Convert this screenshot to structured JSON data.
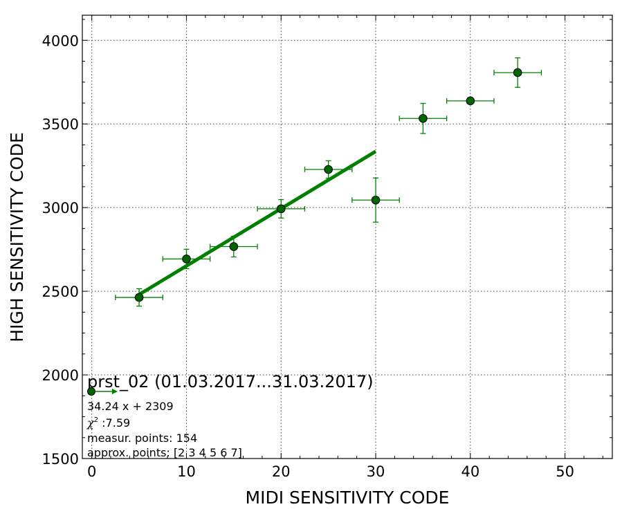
{
  "colors": {
    "series": "#008000",
    "marker_fill": "#006400",
    "axis": "#000000"
  },
  "chart_data": {
    "type": "scatter",
    "title": "",
    "xlabel": "MIDI SENSITIVITY CODE",
    "ylabel": "HIGH SENSITIVITY CODE",
    "xlim": [
      -1,
      55
    ],
    "ylim": [
      1500,
      4150
    ],
    "xticks": [
      0,
      10,
      20,
      30,
      40,
      50
    ],
    "yticks": [
      1500,
      2000,
      2500,
      3000,
      3500,
      4000
    ],
    "grid": true,
    "points": [
      {
        "x": 5,
        "y": 2463,
        "xerr": 2.5,
        "yerr": 52
      },
      {
        "x": 10,
        "y": 2693,
        "xerr": 2.5,
        "yerr": 58
      },
      {
        "x": 15,
        "y": 2767,
        "xerr": 2.5,
        "yerr": 62
      },
      {
        "x": 20,
        "y": 2993,
        "xerr": 2.5,
        "yerr": 55
      },
      {
        "x": 25,
        "y": 3228,
        "xerr": 2.5,
        "yerr": 52
      },
      {
        "x": 30,
        "y": 3045,
        "xerr": 2.5,
        "yerr": 132
      },
      {
        "x": 35,
        "y": 3533,
        "xerr": 2.5,
        "yerr": 90
      },
      {
        "x": 40,
        "y": 3638,
        "xerr": 2.5,
        "yerr": 8
      },
      {
        "x": 45,
        "y": 3807,
        "xerr": 2.5,
        "yerr": 88
      }
    ],
    "fit": {
      "slope": 34.24,
      "intercept": 2309,
      "x_range": [
        5,
        30
      ]
    },
    "legend": {
      "position": "lower-left",
      "title": "prst_02 (01.03.2017...31.03.2017)",
      "equation": "34.24 x + 2309",
      "chi_symbol": "χ",
      "chi_sup": "2",
      "chi_value": " :7.59",
      "measured": "measur. points: 154",
      "approx": "approx. points: [2 3 4 5 6 7]"
    }
  }
}
